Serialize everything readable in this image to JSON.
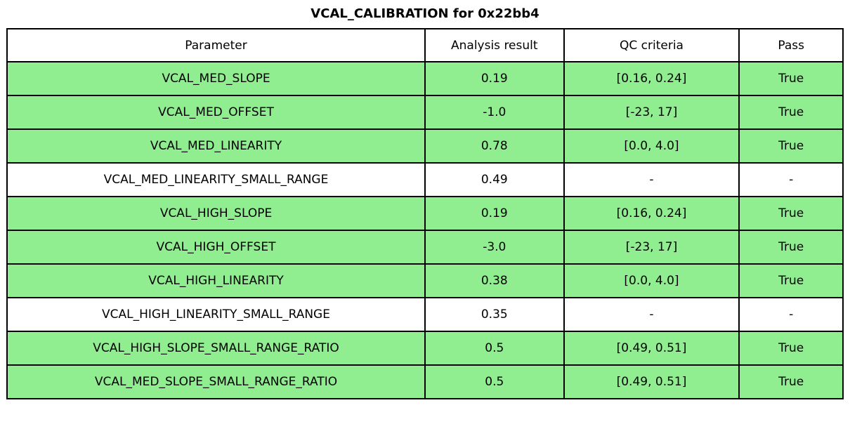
{
  "title": "VCAL_CALIBRATION for 0x22bb4",
  "colors": {
    "pass_row_green": "#90EE90",
    "neutral_row_white": "#FFFFFF",
    "grid_border": "#000000"
  },
  "table": {
    "headers": [
      "Parameter",
      "Analysis result",
      "QC criteria",
      "Pass"
    ],
    "rows": [
      {
        "parameter": "VCAL_MED_SLOPE",
        "result": "0.19",
        "criteria": "[0.16, 0.24]",
        "pass": "True",
        "highlight": true
      },
      {
        "parameter": "VCAL_MED_OFFSET",
        "result": "-1.0",
        "criteria": "[-23, 17]",
        "pass": "True",
        "highlight": true
      },
      {
        "parameter": "VCAL_MED_LINEARITY",
        "result": "0.78",
        "criteria": "[0.0, 4.0]",
        "pass": "True",
        "highlight": true
      },
      {
        "parameter": "VCAL_MED_LINEARITY_SMALL_RANGE",
        "result": "0.49",
        "criteria": "-",
        "pass": "-",
        "highlight": false
      },
      {
        "parameter": "VCAL_HIGH_SLOPE",
        "result": "0.19",
        "criteria": "[0.16, 0.24]",
        "pass": "True",
        "highlight": true
      },
      {
        "parameter": "VCAL_HIGH_OFFSET",
        "result": "-3.0",
        "criteria": "[-23, 17]",
        "pass": "True",
        "highlight": true
      },
      {
        "parameter": "VCAL_HIGH_LINEARITY",
        "result": "0.38",
        "criteria": "[0.0, 4.0]",
        "pass": "True",
        "highlight": true
      },
      {
        "parameter": "VCAL_HIGH_LINEARITY_SMALL_RANGE",
        "result": "0.35",
        "criteria": "-",
        "pass": "-",
        "highlight": false
      },
      {
        "parameter": "VCAL_HIGH_SLOPE_SMALL_RANGE_RATIO",
        "result": "0.5",
        "criteria": "[0.49, 0.51]",
        "pass": "True",
        "highlight": true
      },
      {
        "parameter": "VCAL_MED_SLOPE_SMALL_RANGE_RATIO",
        "result": "0.5",
        "criteria": "[0.49, 0.51]",
        "pass": "True",
        "highlight": true
      }
    ]
  }
}
